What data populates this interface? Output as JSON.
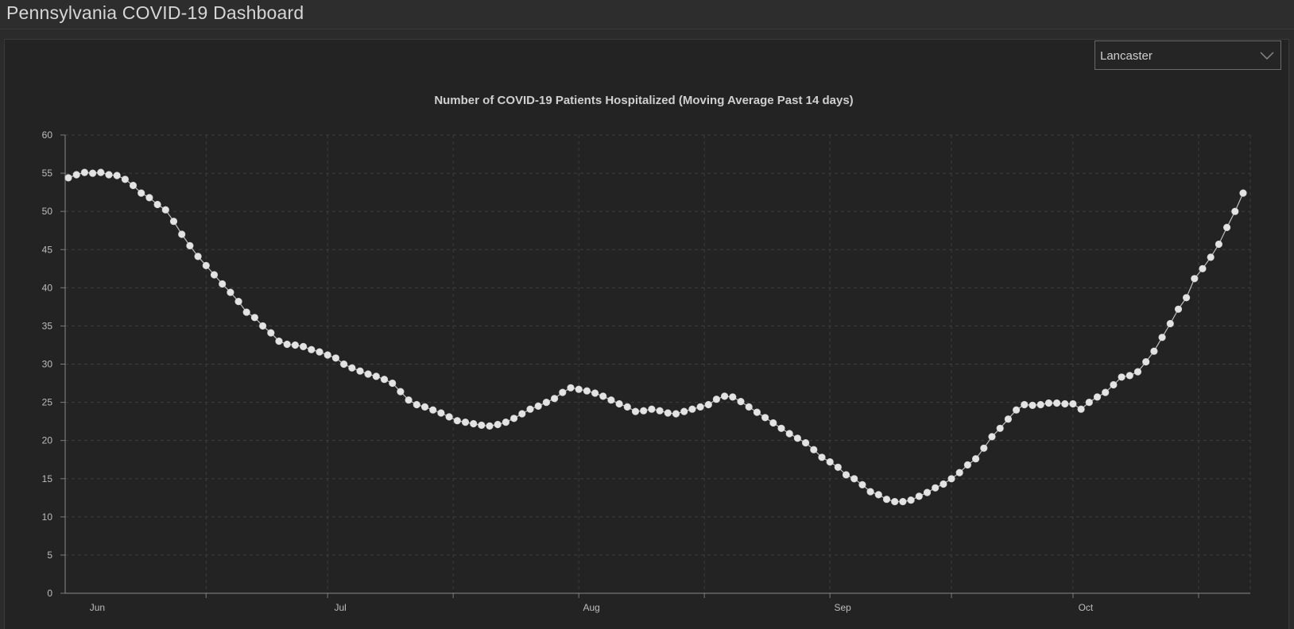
{
  "header": {
    "title": "Pennsylvania COVID-19 Dashboard"
  },
  "filter": {
    "selected": "Lancaster",
    "caret_icon": "chevron-down-icon"
  },
  "colors": {
    "background": "#232323",
    "line": "#bfbfbf",
    "marker": "#e3e3e3",
    "grid": "#3e3e3e"
  },
  "chart_data": {
    "type": "line",
    "title": "Number of COVID-19 Patients Hospitalized (Moving Average Past 14 days)",
    "xlabel": "",
    "ylabel": "",
    "ylim": [
      0,
      60
    ],
    "yticks": [
      0,
      5,
      10,
      15,
      20,
      25,
      30,
      35,
      40,
      45,
      50,
      55,
      60
    ],
    "xticks": [
      {
        "label": "Jun",
        "date": "2020-06-01"
      },
      {
        "label": "Jul",
        "date": "2020-07-01"
      },
      {
        "label": "Aug",
        "date": "2020-08-01"
      },
      {
        "label": "Sep",
        "date": "2020-09-01"
      },
      {
        "label": "Oct",
        "date": "2020-10-01"
      }
    ],
    "grid": true,
    "series": [
      {
        "start_date": "2020-05-30",
        "values": [
          54.4,
          54.8,
          55.1,
          55.0,
          55.1,
          54.8,
          54.7,
          54.2,
          53.4,
          52.4,
          51.8,
          50.9,
          50.2,
          48.7,
          47.0,
          45.5,
          44.1,
          42.9,
          41.7,
          40.5,
          39.4,
          38.2,
          36.8,
          36.1,
          35.0,
          34.1,
          33.0,
          32.6,
          32.5,
          32.3,
          31.9,
          31.6,
          31.2,
          30.8,
          30.0,
          29.5,
          29.1,
          28.7,
          28.4,
          28.0,
          27.5,
          26.4,
          25.3,
          24.7,
          24.4,
          24.0,
          23.6,
          23.1,
          22.6,
          22.4,
          22.2,
          22.0,
          21.9,
          22.1,
          22.4,
          22.9,
          23.5,
          24.1,
          24.5,
          25.0,
          25.5,
          26.3,
          26.9,
          26.7,
          26.5,
          26.2,
          25.8,
          25.3,
          24.8,
          24.4,
          23.8,
          23.9,
          24.1,
          23.9,
          23.6,
          23.5,
          23.8,
          24.1,
          24.4,
          24.7,
          25.4,
          25.8,
          25.7,
          25.1,
          24.4,
          23.7,
          23.0,
          22.3,
          21.6,
          20.9,
          20.3,
          19.7,
          18.8,
          17.8,
          17.2,
          16.5,
          15.5,
          15.0,
          14.2,
          13.3,
          12.9,
          12.3,
          12.0,
          12.0,
          12.2,
          12.7,
          13.2,
          13.8,
          14.3,
          15.0,
          15.8,
          16.8,
          17.6,
          19.0,
          20.5,
          21.6,
          22.8,
          24.0,
          24.7,
          24.6,
          24.7,
          24.9,
          24.9,
          24.8,
          24.8,
          24.1,
          25.0,
          25.7,
          26.3,
          27.3,
          28.3,
          28.5,
          29.0,
          30.3,
          31.7,
          33.5,
          35.3,
          37.2,
          38.7,
          41.2,
          42.5,
          44.0,
          45.7,
          47.9,
          50.0,
          52.4
        ]
      }
    ]
  }
}
